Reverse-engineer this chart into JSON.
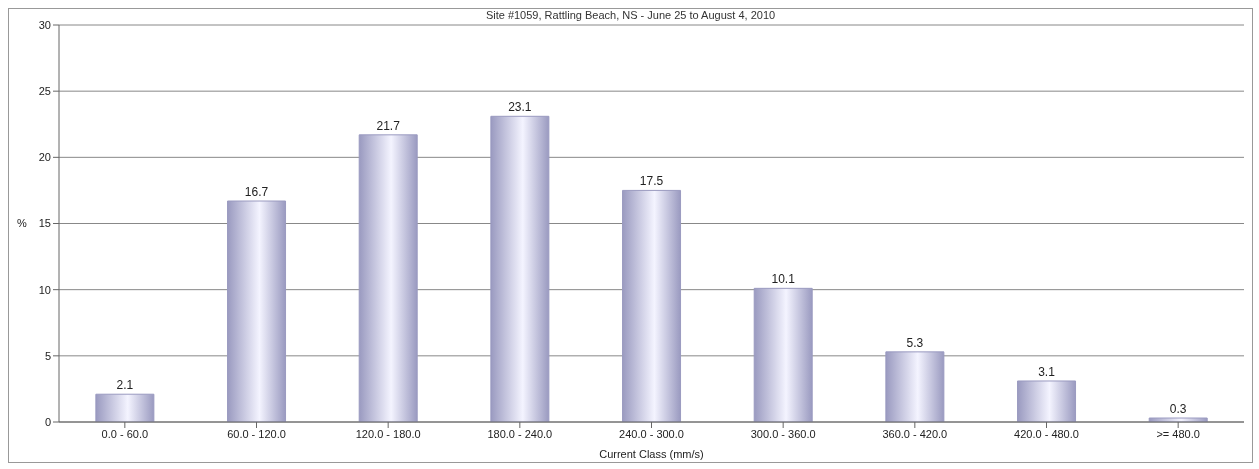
{
  "chart_data": {
    "type": "bar",
    "title": "Site #1059, Rattling Beach, NS - June 25 to August 4, 2010",
    "xlabel": "Current Class (mm/s)",
    "ylabel": "%",
    "categories": [
      "0.0 - 60.0",
      "60.0 - 120.0",
      "120.0 - 180.0",
      "180.0 - 240.0",
      "240.0 - 300.0",
      "300.0 - 360.0",
      "360.0 - 420.0",
      "420.0 - 480.0",
      ">= 480.0"
    ],
    "values": [
      2.1,
      16.7,
      21.7,
      23.1,
      17.5,
      10.1,
      5.3,
      3.1,
      0.3
    ],
    "color": "#9a9ac0",
    "ylim": [
      0,
      30
    ],
    "yticks": [
      0,
      5,
      10,
      15,
      20,
      25,
      30
    ],
    "grid": "y",
    "data_labels": true
  }
}
